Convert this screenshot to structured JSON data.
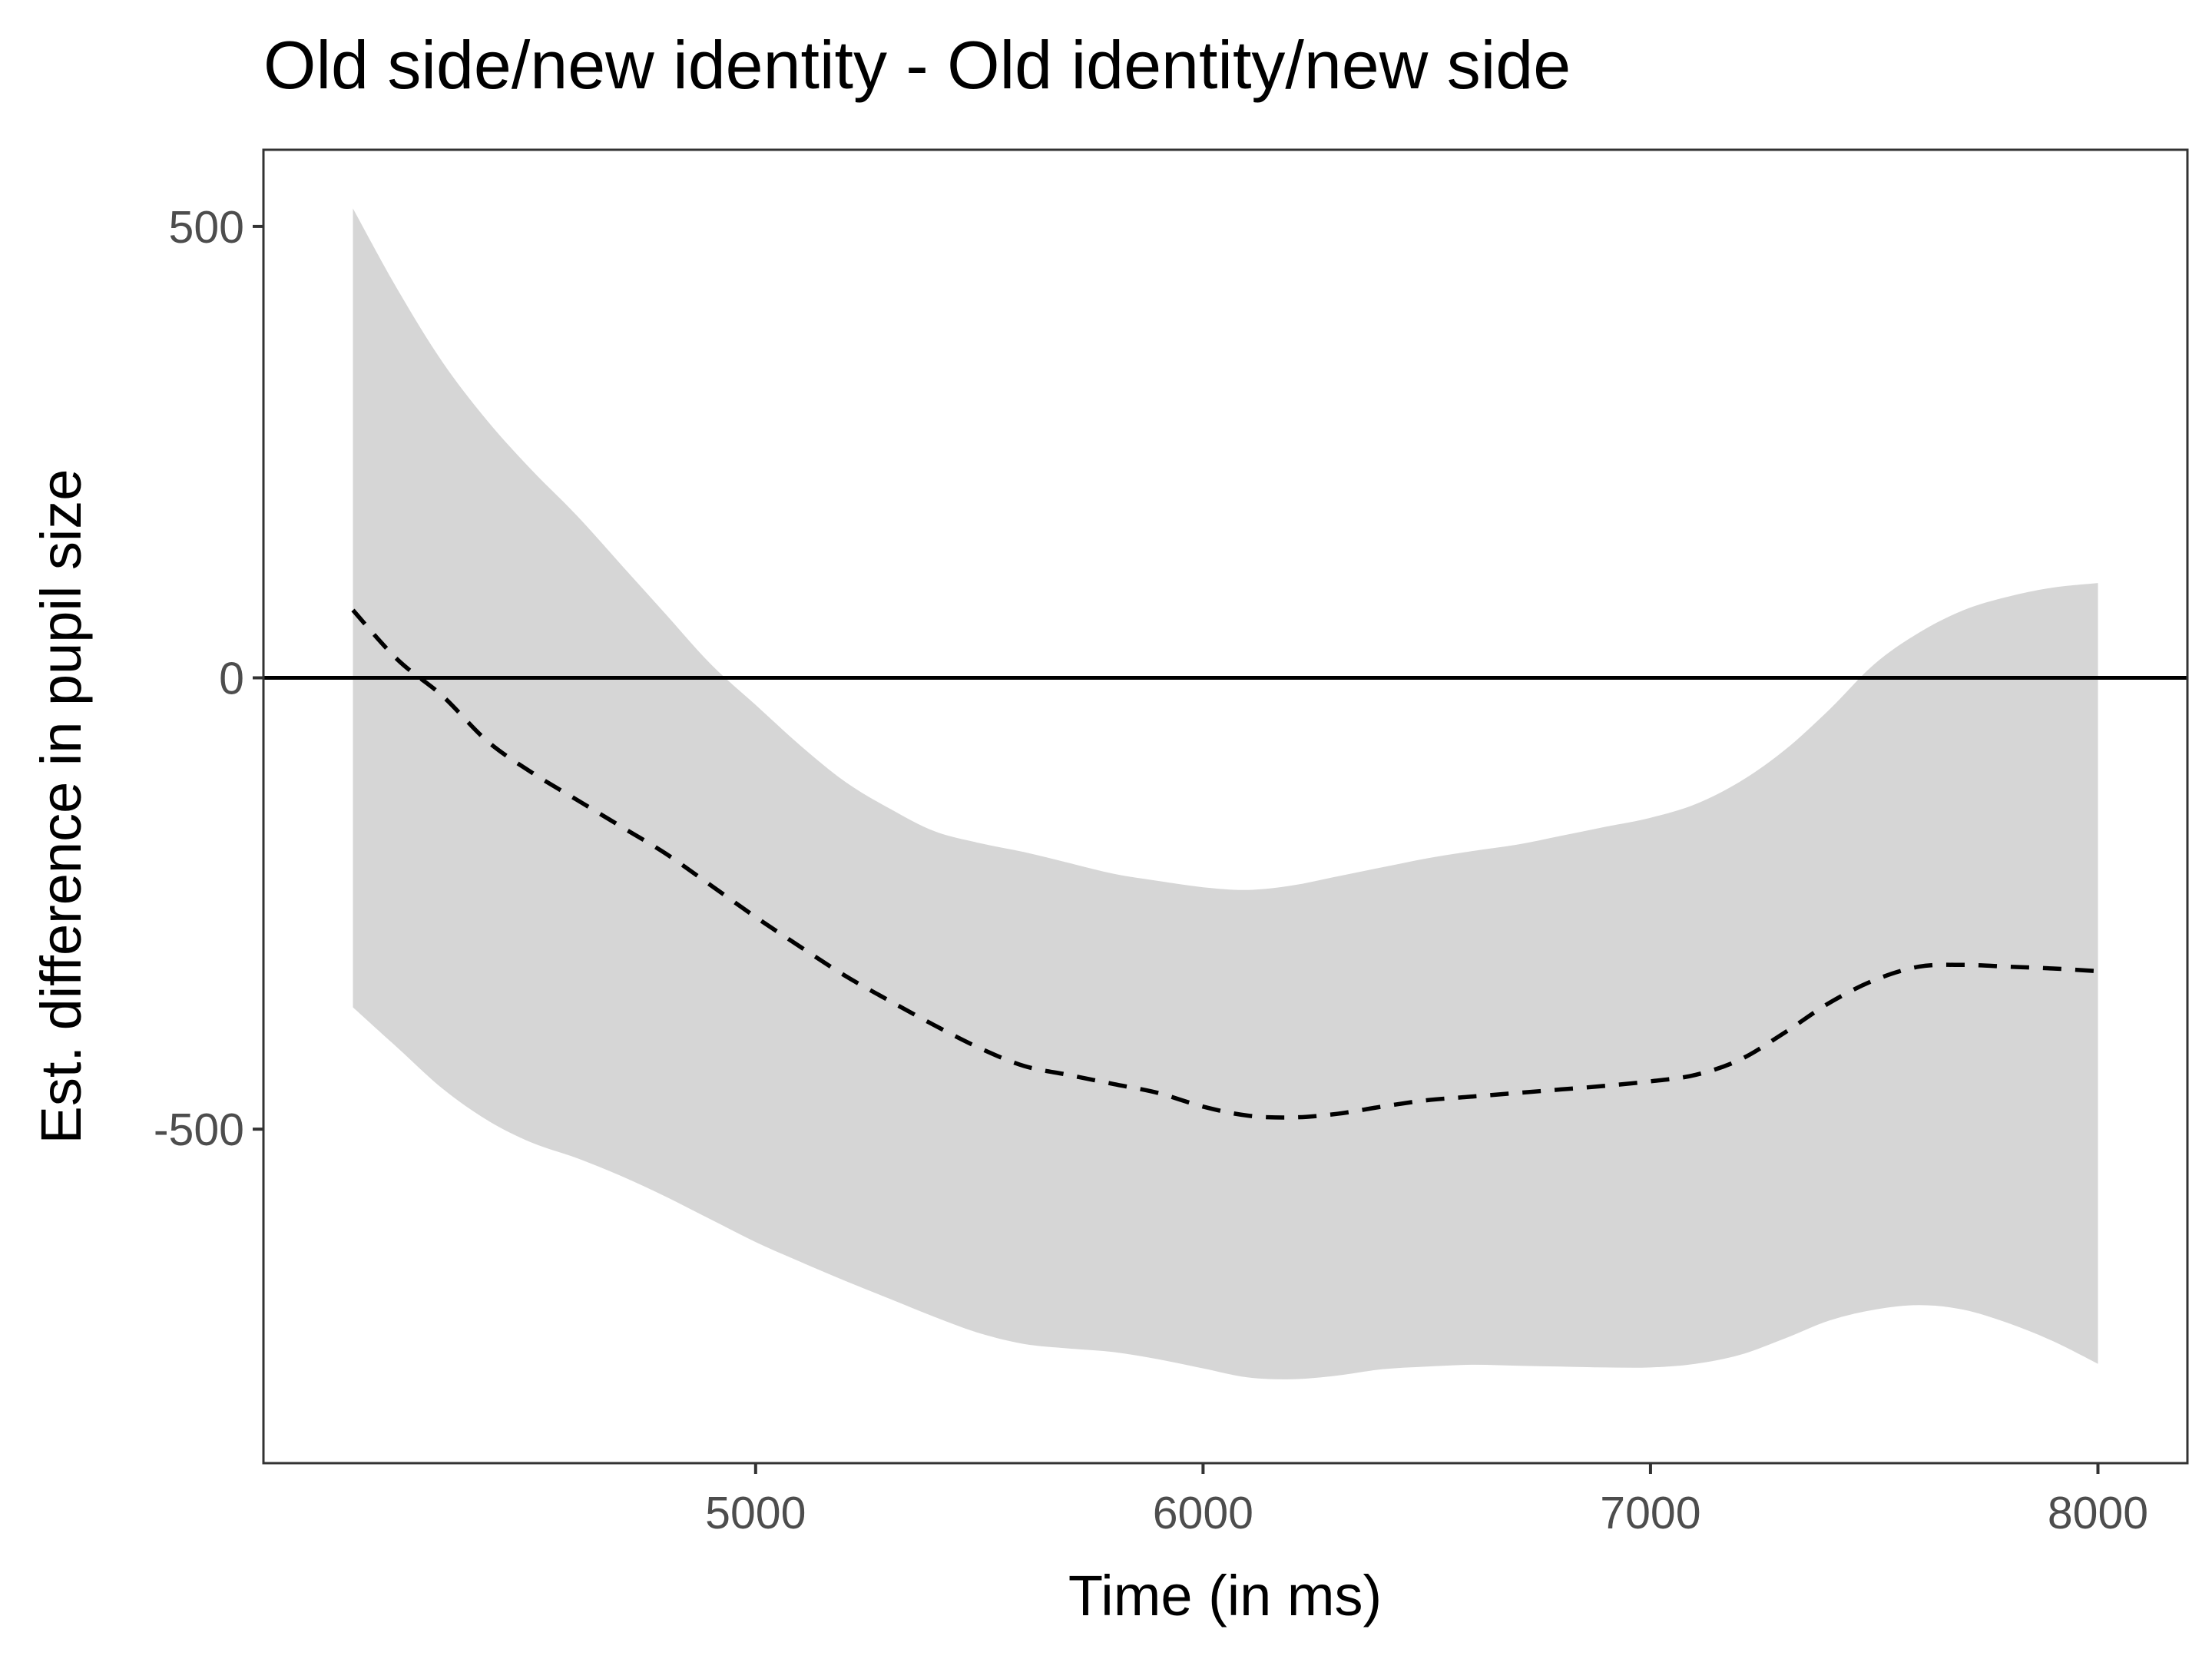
{
  "chart_data": {
    "type": "line",
    "title": "Old side/new identity - Old identity/new side",
    "xlabel": "Time (in ms)",
    "ylabel": "Est. difference in pupil size",
    "xlim": [
      3900,
      8200
    ],
    "ylim": [
      -870,
      585
    ],
    "x_ticks": [
      5000,
      6000,
      7000,
      8000
    ],
    "x_tick_labels": [
      "5000",
      "6000",
      "7000",
      "8000"
    ],
    "y_ticks": [
      500,
      0,
      -500
    ],
    "y_tick_labels": [
      "500",
      "0",
      "-500"
    ],
    "reference_line": {
      "y": 0,
      "style": "solid",
      "color": "#000000"
    },
    "grid": false,
    "colors": {
      "band": "#d6d6d6",
      "line": "#000000",
      "panel_border": "#333333",
      "tick_text": "#4d4d4d"
    },
    "series": [
      {
        "style": "dashed",
        "x": [
          4100,
          4200,
          4300,
          4400,
          4500,
          4600,
          4700,
          4800,
          4900,
          5000,
          5100,
          5200,
          5300,
          5400,
          5500,
          5600,
          5700,
          5800,
          5900,
          6000,
          6100,
          6200,
          6300,
          6400,
          6500,
          6600,
          6700,
          6800,
          6900,
          7000,
          7100,
          7200,
          7300,
          7400,
          7500,
          7600,
          7700,
          7800,
          7900,
          8000
        ],
        "y": [
          75,
          20,
          -20,
          -70,
          -105,
          -135,
          -165,
          -195,
          -230,
          -265,
          -298,
          -330,
          -358,
          -385,
          -410,
          -430,
          -440,
          -450,
          -460,
          -475,
          -485,
          -487,
          -483,
          -475,
          -468,
          -464,
          -460,
          -456,
          -452,
          -447,
          -440,
          -423,
          -393,
          -360,
          -335,
          -320,
          -318,
          -320,
          -322,
          -325
        ],
        "lower": [
          -365,
          -410,
          -455,
          -490,
          -515,
          -532,
          -552,
          -575,
          -600,
          -625,
          -647,
          -668,
          -688,
          -708,
          -726,
          -738,
          -743,
          -747,
          -755,
          -765,
          -775,
          -777,
          -773,
          -766,
          -763,
          -761,
          -762,
          -763,
          -764,
          -764,
          -760,
          -750,
          -732,
          -712,
          -700,
          -695,
          -700,
          -715,
          -735,
          -760
        ],
        "upper": [
          520,
          430,
          350,
          285,
          230,
          180,
          125,
          70,
          15,
          -30,
          -75,
          -115,
          -145,
          -170,
          -183,
          -193,
          -205,
          -217,
          -225,
          -232,
          -235,
          -230,
          -220,
          -210,
          -200,
          -192,
          -185,
          -175,
          -165,
          -155,
          -140,
          -115,
          -80,
          -35,
          15,
          50,
          75,
          90,
          100,
          105
        ]
      }
    ]
  }
}
